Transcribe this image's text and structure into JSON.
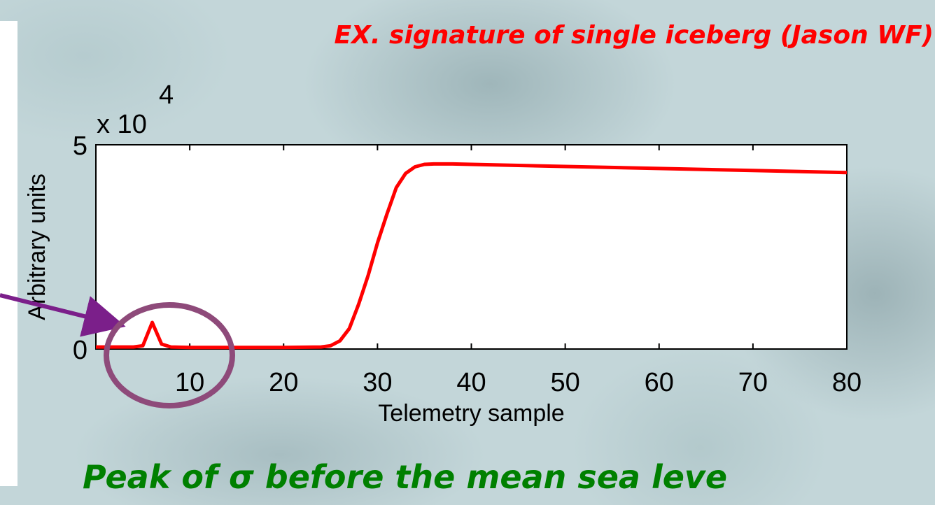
{
  "slide": {
    "title": "EX. signature of single iceberg (Jason WF)",
    "caption": "Peak of σ before the mean sea leve"
  },
  "colors": {
    "series": "#ff0000",
    "highlight_circle": "#8e4a7a",
    "arrow": "#7b1f8a",
    "title": "#ff0000",
    "caption": "#008000"
  },
  "chart_data": {
    "type": "line",
    "title": "",
    "xlabel": "Telemetry sample",
    "ylabel": "Arbitrary units",
    "y_multiplier_base": "x 10",
    "y_multiplier_exponent": "4",
    "xlim": [
      0,
      80
    ],
    "ylim": [
      0,
      5
    ],
    "grid": false,
    "x_ticks": [
      10,
      20,
      30,
      40,
      50,
      60,
      70,
      80
    ],
    "x_tick_labels": [
      "10",
      "20",
      "30",
      "40",
      "50",
      "60",
      "70",
      "80"
    ],
    "y_ticks": [
      0,
      5
    ],
    "y_tick_labels": [
      "0",
      "5"
    ],
    "series": [
      {
        "x": [
          0,
          2,
          4,
          5,
          6,
          7,
          8,
          10,
          12,
          15,
          20,
          24,
          25,
          26,
          27,
          28,
          29,
          30,
          31,
          32,
          33,
          34,
          35,
          36,
          38,
          40,
          50,
          60,
          70,
          80
        ],
        "y": [
          0.05,
          0.05,
          0.05,
          0.08,
          0.65,
          0.12,
          0.05,
          0.04,
          0.04,
          0.04,
          0.04,
          0.05,
          0.08,
          0.2,
          0.5,
          1.1,
          1.8,
          2.6,
          3.3,
          3.95,
          4.3,
          4.46,
          4.52,
          4.53,
          4.53,
          4.52,
          4.47,
          4.42,
          4.37,
          4.32
        ]
      }
    ]
  }
}
